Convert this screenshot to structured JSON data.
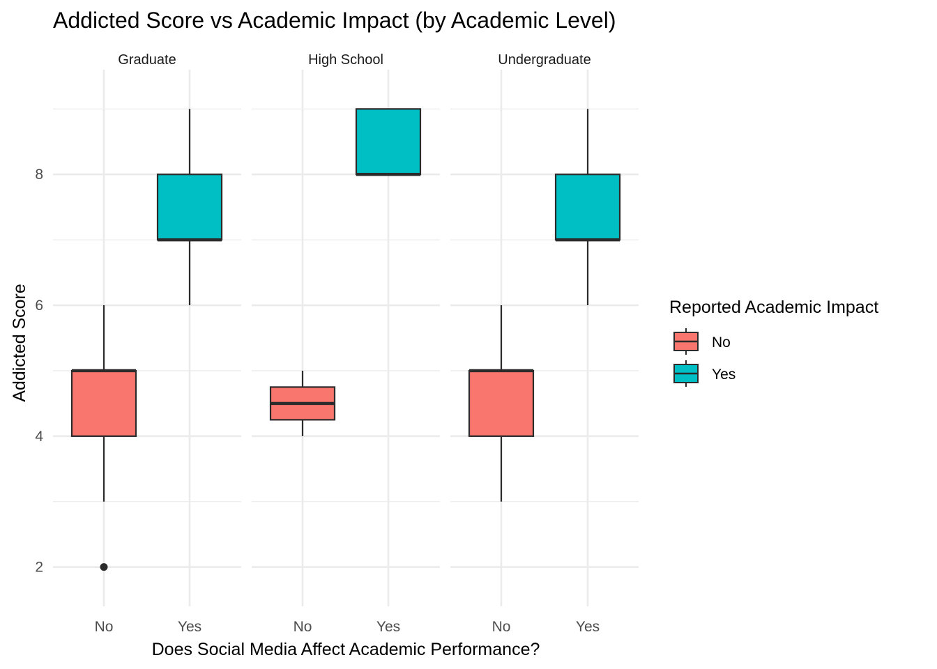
{
  "chart_data": {
    "type": "boxplot",
    "title": "Addicted Score vs Academic Impact (by Academic Level)",
    "xlabel": "Does Social Media Affect Academic Performance?",
    "ylabel": "Addicted Score",
    "ylim": [
      1.4,
      9.6
    ],
    "yticks": [
      2,
      4,
      6,
      8
    ],
    "grid": true,
    "categories": [
      "No",
      "Yes"
    ],
    "facets": [
      {
        "label": "Graduate",
        "boxes": [
          {
            "category": "No",
            "group": "No",
            "whisker_low": 3,
            "q1": 4,
            "median": 5,
            "q3": 5,
            "whisker_high": 6,
            "outliers": [
              2
            ]
          },
          {
            "category": "Yes",
            "group": "Yes",
            "whisker_low": 6,
            "q1": 7,
            "median": 7,
            "q3": 8,
            "whisker_high": 9,
            "outliers": []
          }
        ]
      },
      {
        "label": "High School",
        "boxes": [
          {
            "category": "No",
            "group": "No",
            "whisker_low": 4,
            "q1": 4.25,
            "median": 4.5,
            "q3": 4.75,
            "whisker_high": 5,
            "outliers": []
          },
          {
            "category": "Yes",
            "group": "Yes",
            "whisker_low": 8,
            "q1": 8,
            "median": 8,
            "q3": 9,
            "whisker_high": 9,
            "outliers": []
          }
        ]
      },
      {
        "label": "Undergraduate",
        "boxes": [
          {
            "category": "No",
            "group": "No",
            "whisker_low": 3,
            "q1": 4,
            "median": 5,
            "q3": 5,
            "whisker_high": 6,
            "outliers": []
          },
          {
            "category": "Yes",
            "group": "Yes",
            "whisker_low": 6,
            "q1": 7,
            "median": 7,
            "q3": 8,
            "whisker_high": 9,
            "outliers": []
          }
        ]
      }
    ],
    "legend": {
      "title": "Reported Academic Impact",
      "position": "right",
      "items": [
        {
          "label": "No",
          "color": "#F8766D"
        },
        {
          "label": "Yes",
          "color": "#00BFC4"
        }
      ]
    }
  }
}
